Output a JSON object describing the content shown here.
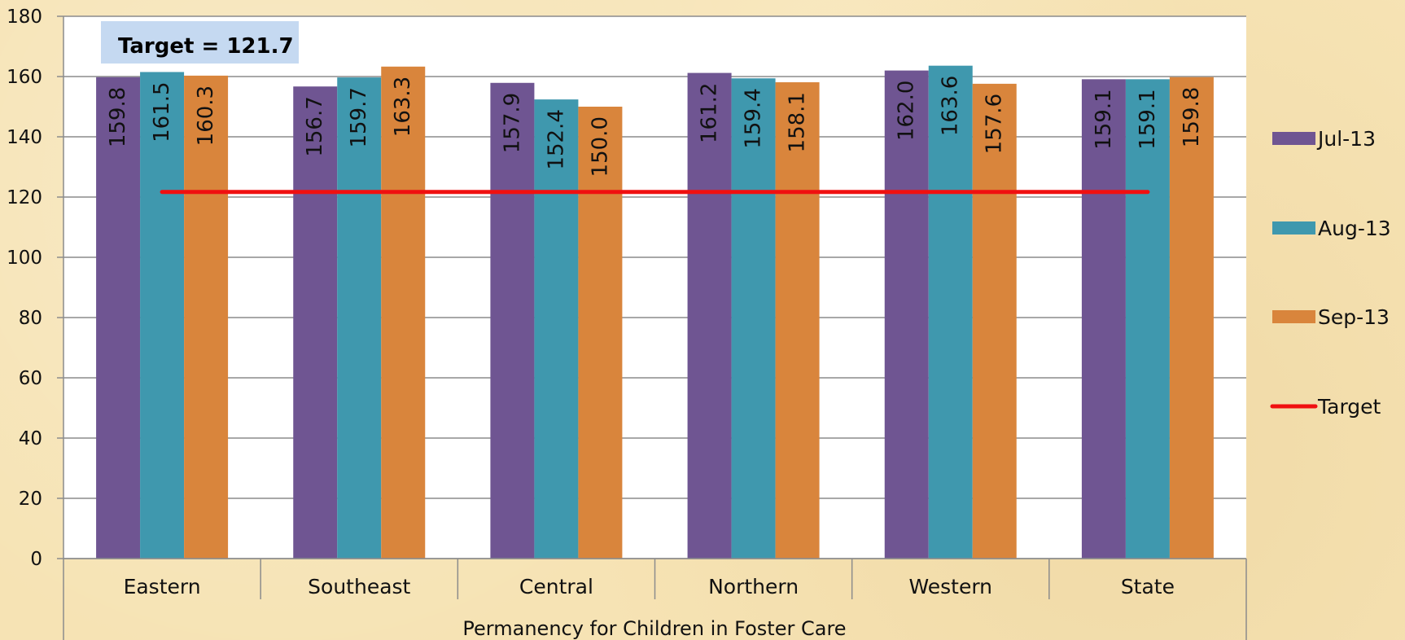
{
  "chart_data": {
    "type": "bar",
    "title": "",
    "xlabel": "Permanency for Children in Foster Care",
    "ylabel": "",
    "categories": [
      "Eastern",
      "Southeast",
      "Central",
      "Northern",
      "Western",
      "State"
    ],
    "series": [
      {
        "name": "Jul-13",
        "color": "#6f5592",
        "values": [
          159.8,
          156.7,
          157.9,
          161.2,
          162.0,
          159.1
        ]
      },
      {
        "name": "Aug-13",
        "color": "#3f98ae",
        "values": [
          161.5,
          159.7,
          152.4,
          159.4,
          163.6,
          159.1
        ]
      },
      {
        "name": "Sep-13",
        "color": "#d9853c",
        "values": [
          160.3,
          163.3,
          150.0,
          158.1,
          157.6,
          159.8
        ]
      }
    ],
    "target": {
      "name": "Target",
      "value": 121.7,
      "color": "#f01010"
    },
    "target_label": "Target = 121.7",
    "ylim": [
      0,
      180
    ],
    "yticks": [
      0,
      20,
      40,
      60,
      80,
      100,
      120,
      140,
      160,
      180
    ],
    "grid": true,
    "legend_position": "right"
  }
}
